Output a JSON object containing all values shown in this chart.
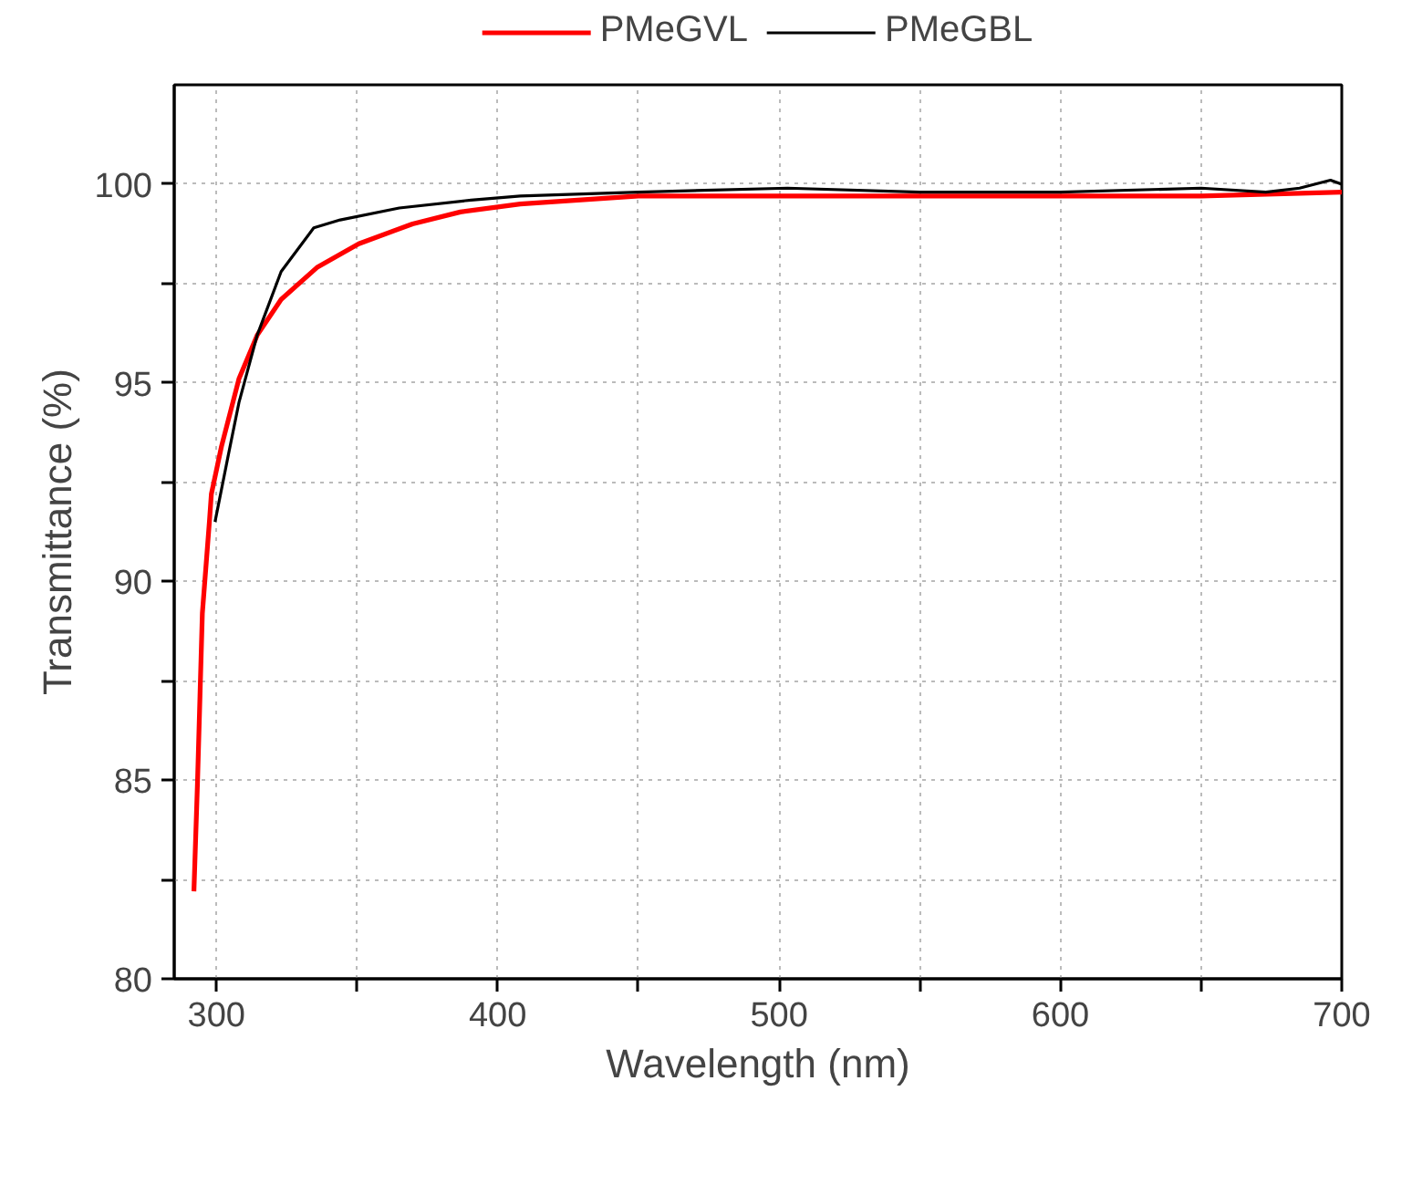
{
  "chart_data": {
    "type": "line",
    "xlabel": "Wavelength (nm)",
    "ylabel": "Transmittance (%)",
    "xlim": [
      285,
      700
    ],
    "ylim": [
      80,
      102.5
    ],
    "xticks": [
      300,
      {
        "value": 350,
        "label": null
      },
      400,
      {
        "value": 450,
        "label": null
      },
      500,
      {
        "value": 550,
        "label": null
      },
      600,
      {
        "value": 650,
        "label": null
      },
      700
    ],
    "yticks": [
      80,
      {
        "value": 82.5,
        "label": null
      },
      85,
      {
        "value": 87.5,
        "label": null
      },
      90,
      {
        "value": 92.5,
        "label": null
      },
      95,
      {
        "value": 97.5,
        "label": null
      },
      100
    ],
    "grid": true,
    "legend": "top",
    "line_style": "solid",
    "marker": "none",
    "series": [
      {
        "name": "PMeGVL",
        "color": "#ff0000",
        "x": [
          292,
          293.3,
          295,
          297.5,
          298.2,
          301.8,
          308,
          314.5,
          323,
          335.7,
          350.6,
          369.7,
          386.7,
          408,
          450,
          503,
          550,
          600,
          650,
          700
        ],
        "values": [
          82.2,
          85,
          89.2,
          91.5,
          92.2,
          93.4,
          95.1,
          96.2,
          97.1,
          97.9,
          98.5,
          99.0,
          99.3,
          99.5,
          99.7,
          99.7,
          99.7,
          99.7,
          99.7,
          99.8
        ]
      },
      {
        "name": "PMeGBL",
        "color": "#000000",
        "x": [
          299.5,
          304,
          308,
          314.5,
          323,
          334.6,
          344,
          365,
          390.5,
          408,
          450,
          503,
          550,
          600,
          650,
          673,
          685,
          696,
          700
        ],
        "values": [
          91.5,
          93.1,
          94.5,
          96.2,
          97.8,
          98.9,
          99.1,
          99.4,
          99.6,
          99.7,
          99.8,
          99.9,
          99.8,
          99.8,
          99.9,
          99.8,
          99.9,
          100.1,
          100.0
        ]
      }
    ]
  }
}
